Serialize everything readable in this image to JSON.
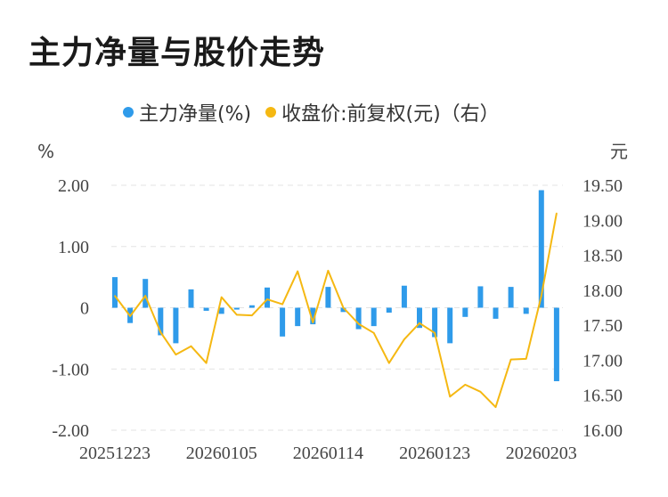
{
  "title": "主力净量与股价走势",
  "chart_data": {
    "type": "bar+line",
    "legend": [
      {
        "name": "主力净量(%)",
        "color": "#2f9bea"
      },
      {
        "name": "收盘价:前复权(元)（右）",
        "color": "#f5b812"
      }
    ],
    "left_unit": "%",
    "right_unit": "元",
    "left_ticks": [
      "2.00",
      "1.00",
      "0",
      "-1.00",
      "-2.00"
    ],
    "right_ticks": [
      "19.50",
      "19.00",
      "18.50",
      "18.00",
      "17.50",
      "17.00",
      "16.50",
      "16.00"
    ],
    "left_ylim": [
      -2,
      2
    ],
    "right_ylim": [
      16,
      19.5
    ],
    "x_tick_labels": [
      "20251223",
      "20260105",
      "20260114",
      "20260123",
      "20260203"
    ],
    "x_tick_index": [
      0,
      7,
      14,
      21,
      28
    ],
    "bar_values": [
      0.5,
      -0.25,
      0.47,
      -0.45,
      -0.58,
      0.3,
      -0.05,
      -0.1,
      -0.03,
      0.04,
      0.33,
      -0.47,
      -0.3,
      -0.27,
      0.34,
      -0.07,
      -0.35,
      -0.3,
      -0.08,
      0.36,
      -0.33,
      -0.48,
      -0.58,
      -0.15,
      0.35,
      -0.18,
      0.34,
      -0.1,
      1.92,
      -1.2
    ],
    "price_values": [
      17.92,
      17.63,
      17.92,
      17.4,
      17.08,
      17.2,
      16.96,
      17.9,
      17.65,
      17.64,
      17.87,
      17.8,
      18.27,
      17.54,
      18.28,
      17.75,
      17.52,
      17.39,
      16.96,
      17.3,
      17.53,
      17.39,
      16.48,
      16.65,
      16.55,
      16.33,
      17.01,
      17.02,
      17.92,
      19.1
    ]
  }
}
